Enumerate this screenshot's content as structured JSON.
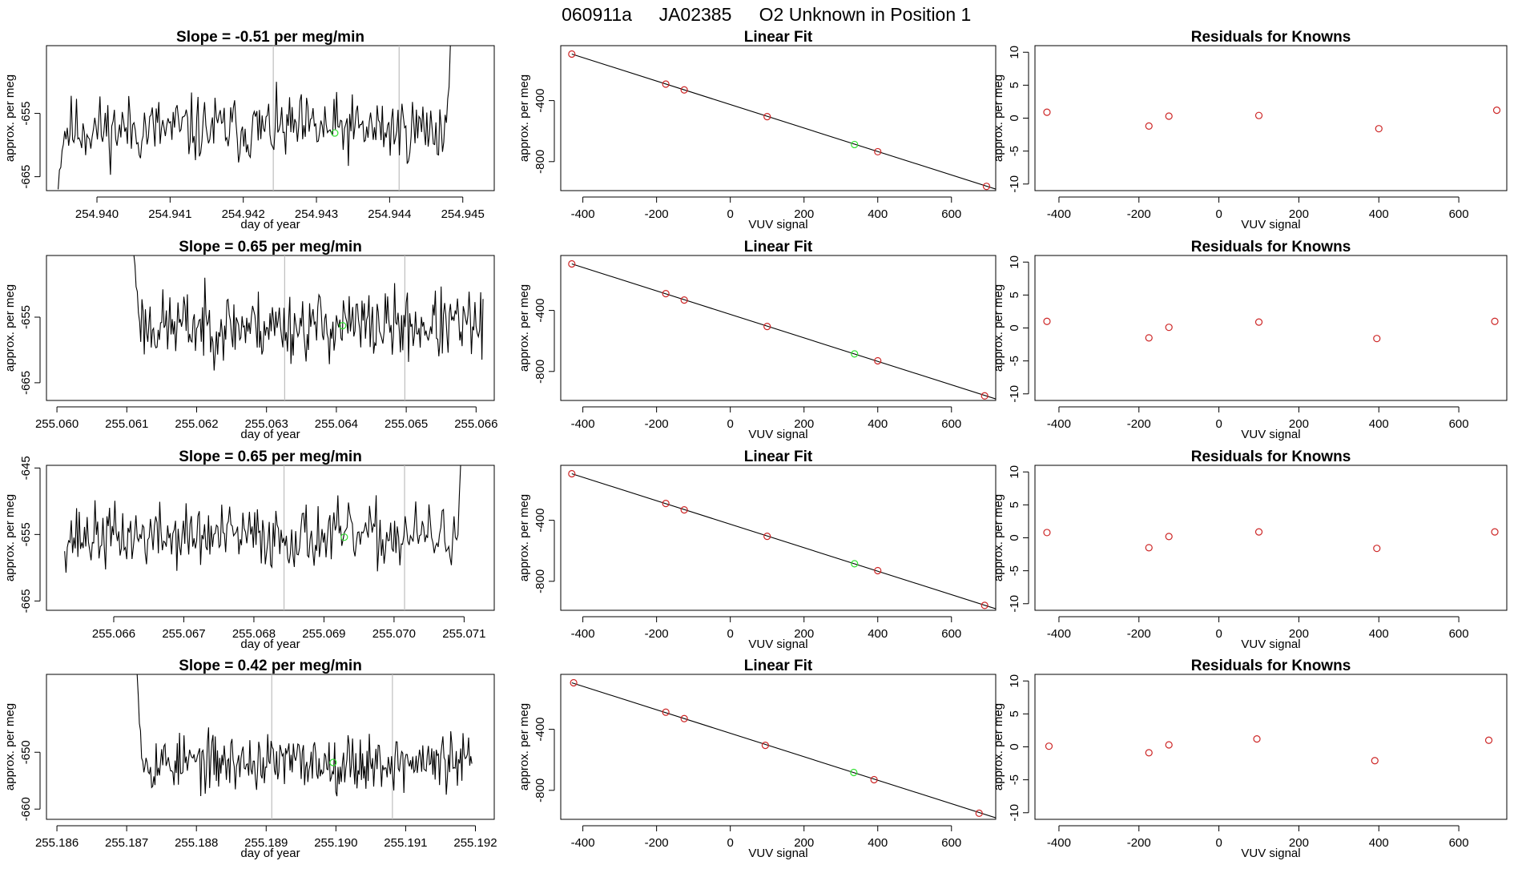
{
  "header": {
    "run_id": "060911a",
    "tank_id": "JA02385",
    "description": "O2 Unknown in Position  1"
  },
  "colors": {
    "trace": "#000000",
    "point_known": "#cd2626",
    "point_unknown": "#33e033",
    "marker_line": "#bebebe",
    "fit_line": "#000000",
    "axis": "#000000"
  },
  "chart_data": [
    {
      "row": 1,
      "panels": [
        {
          "type": "line",
          "title": "Slope =  -0.51  per meg/min",
          "xlabel": "day of year",
          "ylabel": "approx. per meg",
          "xlim": [
            254.93931,
            254.94543
          ],
          "ylim": [
            -667.2,
            -644.3
          ],
          "xticks": [
            254.94,
            254.941,
            254.942,
            254.943,
            254.944,
            254.945
          ],
          "xtick_labels": [
            "254.940",
            "254.941",
            "254.942",
            "254.943",
            "254.944",
            "254.945"
          ],
          "yticks": [
            -655,
            -665
          ],
          "ytick_labels": [
            "-655",
            "-665"
          ],
          "markers_x": [
            254.94241,
            254.94413
          ],
          "unknown_point": {
            "x": 254.94325,
            "y": -658.1
          },
          "trace": {
            "x_start": 254.93947,
            "x_end": 254.94483,
            "y_level": -657.5,
            "amplitude": 3.5,
            "spike_start": {
              "dx": 0.00011,
              "y": -667.0
            },
            "spike_end": {
              "dx": 7e-05,
              "y": -644.3
            },
            "seed": 11
          }
        },
        {
          "type": "scatter",
          "title": "Linear Fit",
          "xlabel": "VUV signal",
          "ylabel": "approx. per meg",
          "xlim": [
            -460,
            720
          ],
          "ylim": [
            -990,
            -40
          ],
          "xticks": [
            -400,
            -200,
            0,
            200,
            400,
            600
          ],
          "xtick_labels": [
            "-400",
            "-200",
            "0",
            "200",
            "400",
            "600"
          ],
          "yticks": [
            -400,
            -800
          ],
          "ytick_labels": [
            "-400",
            "-800"
          ],
          "fit_line": {
            "x0": -430,
            "y0": -95,
            "x1": 720,
            "y1": -980
          },
          "known_points": [
            {
              "x": -430,
              "y": -95
            },
            {
              "x": -175,
              "y": -292
            },
            {
              "x": -125,
              "y": -330
            },
            {
              "x": 100,
              "y": -505
            },
            {
              "x": 400,
              "y": -735
            },
            {
              "x": 695,
              "y": -962
            }
          ],
          "unknown_points": [
            {
              "x": 337,
              "y": -688
            }
          ]
        },
        {
          "type": "scatter",
          "title": "Residuals for Knowns",
          "xlabel": "VUV signal",
          "ylabel": "approx. per meg",
          "xlim": [
            -460,
            720
          ],
          "ylim": [
            -11,
            11
          ],
          "xticks": [
            -400,
            -200,
            0,
            200,
            400,
            600
          ],
          "xtick_labels": [
            "-400",
            "-200",
            "0",
            "200",
            "400",
            "600"
          ],
          "yticks": [
            10,
            5,
            0,
            -5,
            -10
          ],
          "ytick_labels": [
            "10",
            "5",
            "0",
            "-5",
            "-10"
          ],
          "known_points": [
            {
              "x": -430,
              "y": 0.9
            },
            {
              "x": -175,
              "y": -1.2
            },
            {
              "x": -125,
              "y": 0.3
            },
            {
              "x": 100,
              "y": 0.4
            },
            {
              "x": 400,
              "y": -1.6
            },
            {
              "x": 695,
              "y": 1.2
            }
          ]
        }
      ]
    },
    {
      "row": 2,
      "panels": [
        {
          "type": "line",
          "title": "Slope =  0.65  per meg/min",
          "xlabel": "day of year",
          "ylabel": "approx. per meg",
          "xlim": [
            255.05985,
            255.06626
          ],
          "ylim": [
            -667.7,
            -645.6
          ],
          "xticks": [
            255.06,
            255.061,
            255.062,
            255.063,
            255.064,
            255.065,
            255.066
          ],
          "xtick_labels": [
            "255.060",
            "255.061",
            "255.062",
            "255.063",
            "255.064",
            "255.065",
            "255.066"
          ],
          "yticks": [
            -655,
            -665
          ],
          "ytick_labels": [
            "-655",
            "-665"
          ],
          "markers_x": [
            255.06326,
            255.06498
          ],
          "unknown_point": {
            "x": 255.06409,
            "y": -656.3
          },
          "trace": {
            "x_start": 255.0611,
            "x_end": 255.0661,
            "y_level": -656.3,
            "amplitude": 3.5,
            "spike_start": {
              "dx": 0.00015,
              "y": -645.4
            },
            "spike_end": null,
            "seed": 23
          }
        },
        {
          "type": "scatter",
          "title": "Linear Fit",
          "xlabel": "VUV signal",
          "ylabel": "approx. per meg",
          "xlim": [
            -460,
            720
          ],
          "ylim": [
            -990,
            -40
          ],
          "xticks": [
            -400,
            -200,
            0,
            200,
            400,
            600
          ],
          "xtick_labels": [
            "-400",
            "-200",
            "0",
            "200",
            "400",
            "600"
          ],
          "yticks": [
            -400,
            -800
          ],
          "ytick_labels": [
            "-400",
            "-800"
          ],
          "fit_line": {
            "x0": -430,
            "y0": -95,
            "x1": 720,
            "y1": -980
          },
          "known_points": [
            {
              "x": -430,
              "y": -95
            },
            {
              "x": -175,
              "y": -290
            },
            {
              "x": -125,
              "y": -332
            },
            {
              "x": 100,
              "y": -505
            },
            {
              "x": 400,
              "y": -730
            },
            {
              "x": 690,
              "y": -960
            }
          ],
          "unknown_points": [
            {
              "x": 337,
              "y": -685
            }
          ]
        },
        {
          "type": "scatter",
          "title": "Residuals for Knowns",
          "xlabel": "VUV signal",
          "ylabel": "approx. per meg",
          "xlim": [
            -460,
            720
          ],
          "ylim": [
            -11,
            11
          ],
          "xticks": [
            -400,
            -200,
            0,
            200,
            400,
            600
          ],
          "xtick_labels": [
            "-400",
            "-200",
            "0",
            "200",
            "400",
            "600"
          ],
          "yticks": [
            10,
            5,
            0,
            -5,
            -10
          ],
          "ytick_labels": [
            "10",
            "5",
            "0",
            "-5",
            "-10"
          ],
          "known_points": [
            {
              "x": -430,
              "y": 1.0
            },
            {
              "x": -175,
              "y": -1.5
            },
            {
              "x": -125,
              "y": 0.1
            },
            {
              "x": 100,
              "y": 0.9
            },
            {
              "x": 395,
              "y": -1.6
            },
            {
              "x": 690,
              "y": 1.0
            }
          ]
        }
      ]
    },
    {
      "row": 3,
      "panels": [
        {
          "type": "line",
          "title": "Slope =  0.65  per meg/min",
          "xlabel": "day of year",
          "ylabel": "approx. per meg",
          "xlim": [
            255.06504,
            255.07143
          ],
          "ylim": [
            -666.4,
            -644.6
          ],
          "xticks": [
            255.066,
            255.067,
            255.068,
            255.069,
            255.07,
            255.071
          ],
          "xtick_labels": [
            "255.066",
            "255.067",
            "255.068",
            "255.069",
            "255.070",
            "255.071"
          ],
          "yticks": [
            -645,
            -655,
            -665
          ],
          "ytick_labels": [
            "-645",
            "-655",
            "-665"
          ],
          "markers_x": [
            255.06843,
            255.07015
          ],
          "unknown_point": {
            "x": 255.06929,
            "y": -655.4
          },
          "trace": {
            "x_start": 255.0653,
            "x_end": 255.07095,
            "y_level": -655.3,
            "amplitude": 3.2,
            "spike_start": null,
            "spike_end": {
              "dx": 7e-05,
              "y": -644.6
            },
            "seed": 37
          }
        },
        {
          "type": "scatter",
          "title": "Linear Fit",
          "xlabel": "VUV signal",
          "ylabel": "approx. per meg",
          "xlim": [
            -460,
            720
          ],
          "ylim": [
            -990,
            -40
          ],
          "xticks": [
            -400,
            -200,
            0,
            200,
            400,
            600
          ],
          "xtick_labels": [
            "-400",
            "-200",
            "0",
            "200",
            "400",
            "600"
          ],
          "yticks": [
            -400,
            -800
          ],
          "ytick_labels": [
            "-400",
            "-800"
          ],
          "fit_line": {
            "x0": -430,
            "y0": -95,
            "x1": 720,
            "y1": -980
          },
          "known_points": [
            {
              "x": -430,
              "y": -95
            },
            {
              "x": -175,
              "y": -290
            },
            {
              "x": -125,
              "y": -332
            },
            {
              "x": 100,
              "y": -505
            },
            {
              "x": 400,
              "y": -730
            },
            {
              "x": 690,
              "y": -958
            }
          ],
          "unknown_points": [
            {
              "x": 337,
              "y": -685
            }
          ]
        },
        {
          "type": "scatter",
          "title": "Residuals for Knowns",
          "xlabel": "VUV signal",
          "ylabel": "approx. per meg",
          "xlim": [
            -460,
            720
          ],
          "ylim": [
            -11,
            11
          ],
          "xticks": [
            -400,
            -200,
            0,
            200,
            400,
            600
          ],
          "xtick_labels": [
            "-400",
            "-200",
            "0",
            "200",
            "400",
            "600"
          ],
          "yticks": [
            10,
            5,
            0,
            -5,
            -10
          ],
          "ytick_labels": [
            "10",
            "5",
            "0",
            "-5",
            "-10"
          ],
          "known_points": [
            {
              "x": -430,
              "y": 0.8
            },
            {
              "x": -175,
              "y": -1.5
            },
            {
              "x": -125,
              "y": 0.2
            },
            {
              "x": 100,
              "y": 0.9
            },
            {
              "x": 395,
              "y": -1.6
            },
            {
              "x": 690,
              "y": 0.9
            }
          ]
        }
      ]
    },
    {
      "row": 4,
      "panels": [
        {
          "type": "line",
          "title": "Slope =  0.42  per meg/min",
          "xlabel": "day of year",
          "ylabel": "approx. per meg",
          "xlim": [
            255.18585,
            255.19227
          ],
          "ylim": [
            -661.8,
            -636.3
          ],
          "xticks": [
            255.186,
            255.187,
            255.188,
            255.189,
            255.19,
            255.191,
            255.192
          ],
          "xtick_labels": [
            "255.186",
            "255.187",
            "255.188",
            "255.189",
            "255.190",
            "255.191",
            "255.192"
          ],
          "yticks": [
            -650,
            -660
          ],
          "ytick_labels": [
            "-650",
            "-660"
          ],
          "markers_x": [
            255.18908,
            255.19081
          ],
          "unknown_point": {
            "x": 255.18996,
            "y": -651.8
          },
          "trace": {
            "x_start": 255.18715,
            "x_end": 255.19195,
            "y_level": -651.8,
            "amplitude": 3.3,
            "spike_start": {
              "dx": 0.00012,
              "y": -636.3
            },
            "spike_end": null,
            "seed": 53
          }
        },
        {
          "type": "scatter",
          "title": "Linear Fit",
          "xlabel": "VUV signal",
          "ylabel": "approx. per meg",
          "xlim": [
            -460,
            720
          ],
          "ylim": [
            -990,
            -40
          ],
          "xticks": [
            -400,
            -200,
            0,
            200,
            400,
            600
          ],
          "xtick_labels": [
            "-400",
            "-200",
            "0",
            "200",
            "400",
            "600"
          ],
          "yticks": [
            -400,
            -800
          ],
          "ytick_labels": [
            "-400",
            "-800"
          ],
          "fit_line": {
            "x0": -430,
            "y0": -95,
            "x1": 720,
            "y1": -980
          },
          "known_points": [
            {
              "x": -425,
              "y": -95
            },
            {
              "x": -175,
              "y": -288
            },
            {
              "x": -125,
              "y": -330
            },
            {
              "x": 95,
              "y": -505
            },
            {
              "x": 390,
              "y": -730
            },
            {
              "x": 675,
              "y": -950
            }
          ],
          "unknown_points": [
            {
              "x": 335,
              "y": -683
            }
          ]
        },
        {
          "type": "scatter",
          "title": "Residuals for Knowns",
          "xlabel": "VUV signal",
          "ylabel": "approx. per meg",
          "xlim": [
            -460,
            720
          ],
          "ylim": [
            -11,
            11
          ],
          "xticks": [
            -400,
            -200,
            0,
            200,
            400,
            600
          ],
          "xtick_labels": [
            "-400",
            "-200",
            "0",
            "200",
            "400",
            "600"
          ],
          "yticks": [
            10,
            5,
            0,
            -5,
            -10
          ],
          "ytick_labels": [
            "10",
            "5",
            "0",
            "-5",
            "-10"
          ],
          "known_points": [
            {
              "x": -425,
              "y": 0.1
            },
            {
              "x": -175,
              "y": -0.9
            },
            {
              "x": -125,
              "y": 0.3
            },
            {
              "x": 95,
              "y": 1.2
            },
            {
              "x": 390,
              "y": -2.1
            },
            {
              "x": 675,
              "y": 1.0
            }
          ]
        }
      ]
    }
  ]
}
